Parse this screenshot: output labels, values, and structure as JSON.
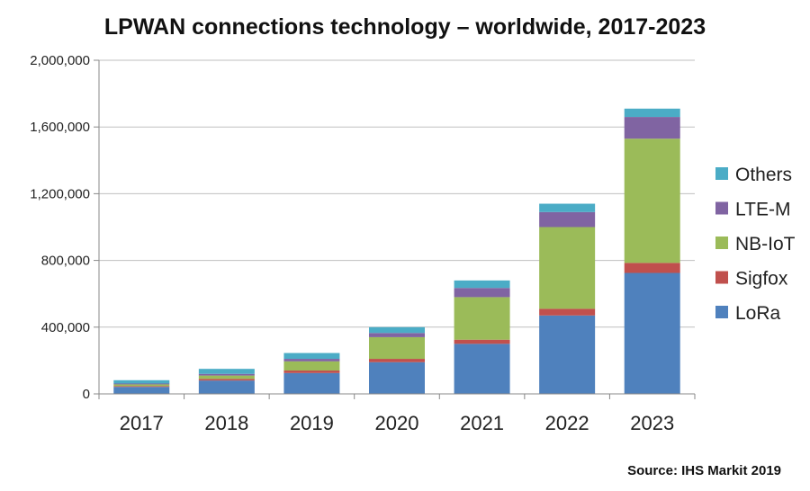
{
  "chart_data": {
    "type": "bar",
    "stacked": true,
    "title": "LPWAN connections technology – worldwide, 2017-2023",
    "source": "Source: IHS Markit 2019",
    "categories": [
      "2017",
      "2018",
      "2019",
      "2020",
      "2021",
      "2022",
      "2023"
    ],
    "ylim": [
      0,
      2000000
    ],
    "yticks": [
      0,
      400000,
      800000,
      1200000,
      1600000,
      2000000
    ],
    "ytick_labels": [
      "0",
      "400,000",
      "800,000",
      "1,200,000",
      "1,600,000",
      "2,000,000"
    ],
    "grid": true,
    "legend_position": "right",
    "series": [
      {
        "name": "LoRa",
        "color": "#4F81BD",
        "values": [
          42000,
          80000,
          125000,
          190000,
          300000,
          470000,
          725000
        ]
      },
      {
        "name": "Sigfox",
        "color": "#C0504D",
        "values": [
          5000,
          10000,
          15000,
          20000,
          25000,
          40000,
          60000
        ]
      },
      {
        "name": "NB-IoT",
        "color": "#9BBB59",
        "values": [
          10000,
          20000,
          55000,
          130000,
          255000,
          490000,
          745000
        ]
      },
      {
        "name": "LTE-M",
        "color": "#8064A2",
        "values": [
          5000,
          10000,
          15000,
          25000,
          55000,
          90000,
          130000
        ]
      },
      {
        "name": "Others",
        "color": "#4BACC6",
        "values": [
          20000,
          30000,
          35000,
          35000,
          45000,
          50000,
          50000
        ]
      }
    ],
    "legend_order": [
      "Others",
      "LTE-M",
      "NB-IoT",
      "Sigfox",
      "LoRa"
    ]
  }
}
